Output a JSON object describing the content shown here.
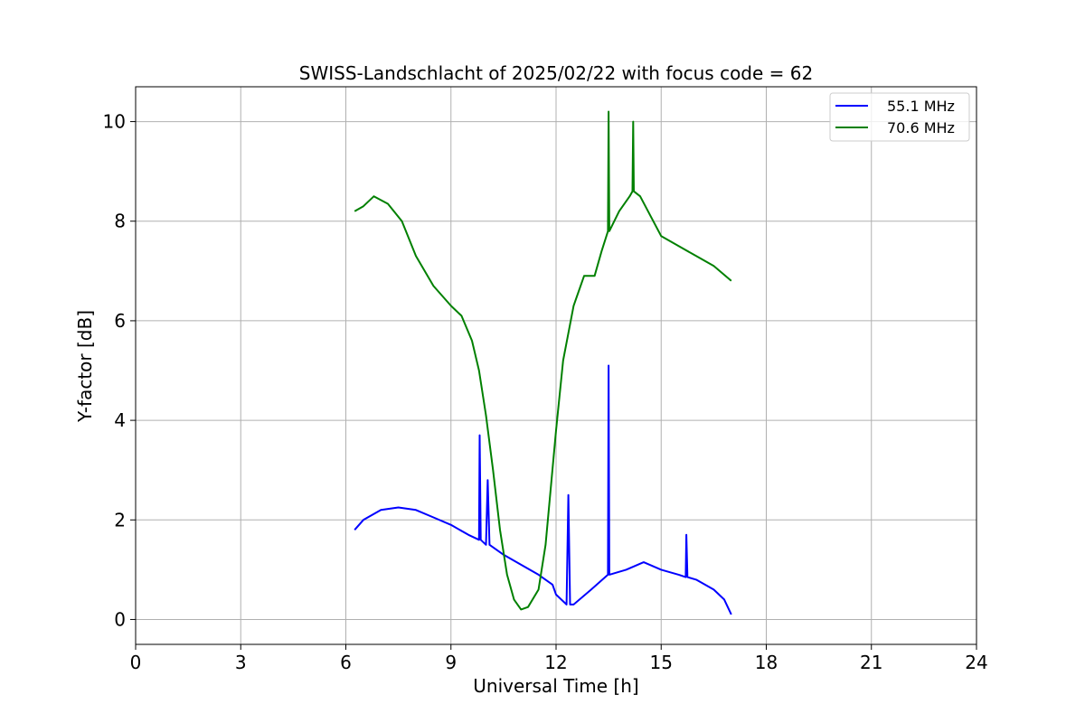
{
  "chart_data": {
    "type": "line",
    "title": "SWISS-Landschlacht of 2025/02/22 with focus code = 62",
    "xlabel": "Universal Time [h]",
    "ylabel": "Y-factor [dB]",
    "xlim": [
      0,
      24
    ],
    "ylim": [
      -0.5,
      10.7
    ],
    "xticks": [
      0,
      3,
      6,
      9,
      12,
      15,
      18,
      21,
      24
    ],
    "yticks": [
      0,
      2,
      4,
      6,
      8,
      10
    ],
    "grid": true,
    "legend_position": "top-right",
    "series": [
      {
        "name": "55.1 MHz",
        "color": "#0000ff",
        "x": [
          6.25,
          6.5,
          7.0,
          7.5,
          8.0,
          8.5,
          9.0,
          9.5,
          9.8,
          9.82,
          9.85,
          10.0,
          10.05,
          10.1,
          10.5,
          11.0,
          11.5,
          11.9,
          12.0,
          12.3,
          12.35,
          12.4,
          12.5,
          13.0,
          13.48,
          13.5,
          13.52,
          14.0,
          14.5,
          15.0,
          15.5,
          15.7,
          15.72,
          15.75,
          16.0,
          16.5,
          16.8,
          17.0
        ],
        "y": [
          1.8,
          2.0,
          2.2,
          2.25,
          2.2,
          2.05,
          1.9,
          1.7,
          1.6,
          3.7,
          1.6,
          1.5,
          2.8,
          1.5,
          1.3,
          1.1,
          0.9,
          0.7,
          0.5,
          0.3,
          2.5,
          0.3,
          0.3,
          0.6,
          0.9,
          5.1,
          0.9,
          1.0,
          1.15,
          1.0,
          0.9,
          0.85,
          1.7,
          0.85,
          0.8,
          0.6,
          0.4,
          0.1
        ]
      },
      {
        "name": "70.6 MHz",
        "color": "#008000",
        "x": [
          6.25,
          6.5,
          6.8,
          7.2,
          7.6,
          8.0,
          8.5,
          9.0,
          9.3,
          9.6,
          9.8,
          10.0,
          10.2,
          10.4,
          10.6,
          10.8,
          11.0,
          11.2,
          11.5,
          11.7,
          12.0,
          12.2,
          12.5,
          12.8,
          13.1,
          13.3,
          13.48,
          13.5,
          13.52,
          13.8,
          14.1,
          14.18,
          14.2,
          14.22,
          14.4,
          14.7,
          15.0,
          15.5,
          16.0,
          16.5,
          17.0
        ],
        "y": [
          8.2,
          8.3,
          8.5,
          8.35,
          8.0,
          7.3,
          6.7,
          6.3,
          6.1,
          5.6,
          5.0,
          4.1,
          3.0,
          1.8,
          0.9,
          0.4,
          0.2,
          0.25,
          0.6,
          1.5,
          3.8,
          5.2,
          6.3,
          6.9,
          6.9,
          7.4,
          7.8,
          10.2,
          7.8,
          8.2,
          8.5,
          8.6,
          10.0,
          8.6,
          8.5,
          8.1,
          7.7,
          7.5,
          7.3,
          7.1,
          6.8
        ]
      }
    ]
  }
}
